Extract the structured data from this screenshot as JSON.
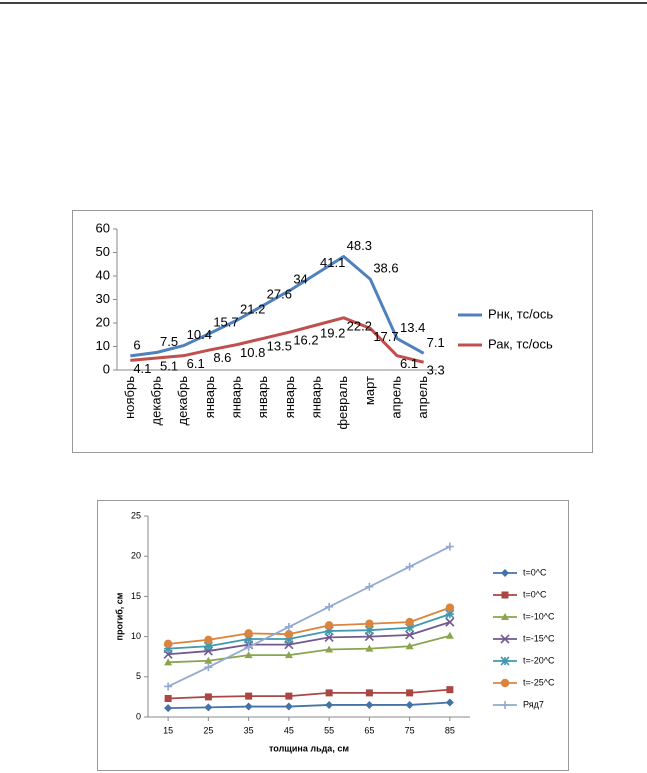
{
  "chart_data": [
    {
      "type": "line",
      "categories": [
        "ноябрь",
        "декабрь",
        "декабрь",
        "январь",
        "январь",
        "январь",
        "январь",
        "январь",
        "февраль",
        "март",
        "апрель",
        "апрель"
      ],
      "series": [
        {
          "name": "Рнк, тс/ось",
          "color": "#4f81bd",
          "values": [
            6,
            7.5,
            10.4,
            15.7,
            21.2,
            27.6,
            34,
            41.1,
            48.3,
            38.6,
            13.4,
            7.1
          ]
        },
        {
          "name": "Рак, тс/ось",
          "color": "#c0504d",
          "values": [
            4.1,
            5.1,
            6.1,
            8.6,
            10.8,
            13.5,
            16.2,
            19.2,
            22.2,
            17.7,
            6.1,
            3.3
          ]
        }
      ],
      "ylim": [
        0,
        60
      ],
      "yticks": [
        0,
        10,
        20,
        30,
        40,
        50,
        60
      ],
      "data_labels": true,
      "legend": "right"
    },
    {
      "type": "line",
      "x": [
        15,
        25,
        35,
        45,
        55,
        65,
        75,
        85
      ],
      "xlim": [
        10,
        90
      ],
      "xticks": [
        15,
        25,
        35,
        45,
        55,
        65,
        75,
        85
      ],
      "series": [
        {
          "name": "t=0^C",
          "color": "#4572a7",
          "marker": "diamond",
          "values": [
            1.1,
            1.2,
            1.3,
            1.3,
            1.5,
            1.5,
            1.5,
            1.8
          ]
        },
        {
          "name": "t=0^C",
          "color": "#aa4643",
          "marker": "square",
          "values": [
            2.3,
            2.5,
            2.6,
            2.6,
            3.0,
            3.0,
            3.0,
            3.4
          ]
        },
        {
          "name": "t=-10^C",
          "color": "#89a54e",
          "marker": "triangle",
          "values": [
            6.8,
            7.0,
            7.7,
            7.7,
            8.4,
            8.5,
            8.8,
            10.1
          ]
        },
        {
          "name": "t=-15^C",
          "color": "#71588f",
          "marker": "x",
          "values": [
            7.8,
            8.2,
            9.0,
            9.0,
            9.9,
            10.0,
            10.2,
            11.8
          ]
        },
        {
          "name": "t=-20^C",
          "color": "#4198af",
          "marker": "star",
          "values": [
            8.5,
            8.8,
            9.7,
            9.7,
            10.7,
            10.8,
            11.1,
            12.8
          ]
        },
        {
          "name": "t=-25^C",
          "color": "#db843d",
          "marker": "circle",
          "values": [
            9.1,
            9.6,
            10.4,
            10.3,
            11.4,
            11.6,
            11.8,
            13.6
          ]
        },
        {
          "name": "Ряд7",
          "color": "#93a9cf",
          "marker": "plus",
          "values": [
            3.8,
            6.2,
            8.7,
            11.2,
            13.7,
            16.2,
            18.7,
            21.2
          ]
        }
      ],
      "ylim": [
        0,
        25
      ],
      "yticks": [
        0,
        5,
        10,
        15,
        20,
        25
      ],
      "xlabel": "толщина льда, см",
      "ylabel": "прогиб, см",
      "legend": "right"
    }
  ]
}
